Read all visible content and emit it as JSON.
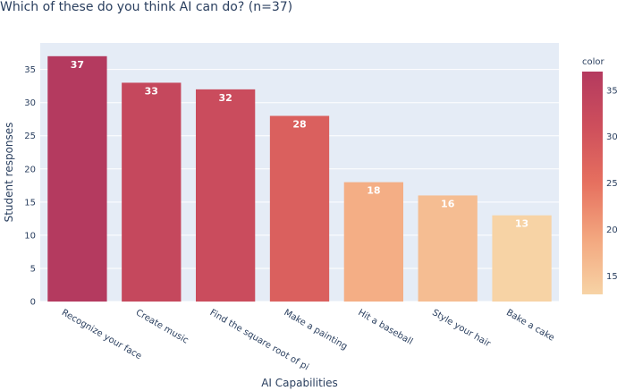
{
  "chart_data": {
    "type": "bar",
    "title": "Which of these do you think AI can do? (n=37)",
    "xlabel": "AI Capabilities",
    "ylabel": "Student responses",
    "categories": [
      "Recognize your face",
      "Create music",
      "Find the square root of pi",
      "Make a painting",
      "Hit a baseball",
      "Style your hair",
      "Bake a cake"
    ],
    "values": [
      37,
      33,
      32,
      28,
      18,
      16,
      13
    ],
    "ylim": [
      0,
      39
    ],
    "yticks": [
      0,
      5,
      10,
      15,
      20,
      25,
      30,
      35
    ],
    "grid": true,
    "colorbar": {
      "title": "color",
      "range": [
        13,
        37
      ],
      "ticks": [
        15,
        20,
        25,
        30,
        35
      ],
      "colors": [
        "#f7d3a5",
        "#f3a77f",
        "#e6705f",
        "#ce4f5c",
        "#b43a5f"
      ]
    },
    "plot_background": "#e5ecf6"
  }
}
